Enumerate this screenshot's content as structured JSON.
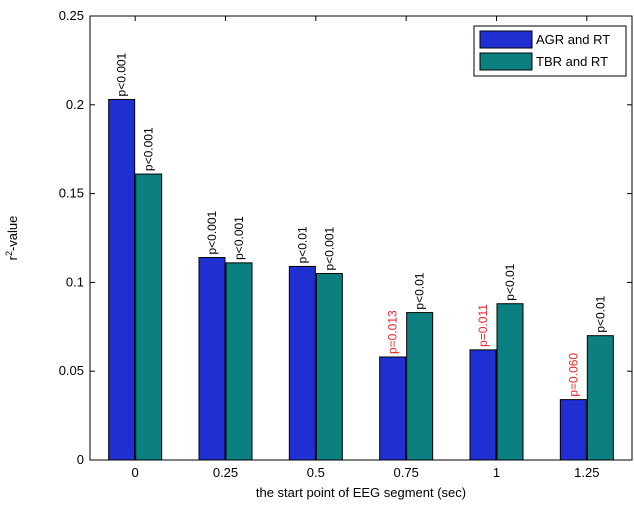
{
  "chart_data": {
    "type": "bar",
    "xlabel": "the start point of EEG segment (sec)",
    "ylabel_main": "r",
    "ylabel_sup": "2",
    "ylabel_rest": "-value",
    "categories": [
      "0",
      "0.25",
      "0.5",
      "0.75",
      "1",
      "1.25"
    ],
    "ylim": [
      0,
      0.25
    ],
    "yticks": [
      0,
      0.05,
      0.1,
      0.15,
      0.2,
      0.25
    ],
    "ytick_labels": [
      "0",
      "0.05",
      "0.1",
      "0.15",
      "0.2",
      "0.25"
    ],
    "grid": false,
    "legend_position": "top-right",
    "series": [
      {
        "name": "AGR and RT",
        "color": "#1f2fd1",
        "values": [
          0.203,
          0.114,
          0.109,
          0.058,
          0.062,
          0.034
        ],
        "labels": [
          "p<0.001",
          "p<0.001",
          "p<0.01",
          "p=0.013",
          "p=0.011",
          "p=0.060"
        ],
        "label_colors": [
          "#000000",
          "#000000",
          "#000000",
          "#e8262b",
          "#e8262b",
          "#e8262b"
        ]
      },
      {
        "name": "TBR and RT",
        "color": "#0c8080",
        "values": [
          0.161,
          0.111,
          0.105,
          0.083,
          0.088,
          0.07
        ],
        "labels": [
          "p<0.001",
          "p<0.001",
          "p<0.001",
          "p<0.01",
          "p<0.01",
          "p<0.01"
        ],
        "label_colors": [
          "#000000",
          "#000000",
          "#000000",
          "#000000",
          "#000000",
          "#000000"
        ]
      }
    ]
  }
}
